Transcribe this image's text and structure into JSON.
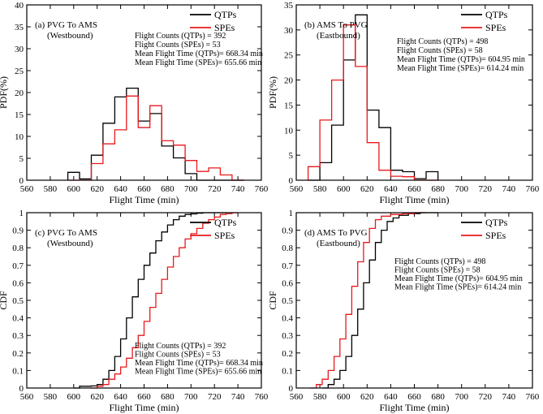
{
  "colors": {
    "qtps": "#000000",
    "spes": "#e8191c",
    "axis": "#000000"
  },
  "chart_data": [
    {
      "id": "a",
      "type": "histogram",
      "title": "(a) PVG To AMS",
      "subtitle": "(Westbound)",
      "xlabel": "Flight Time (min)",
      "ylabel": "PDF(%)",
      "xlim": [
        560,
        760
      ],
      "ylim": [
        0,
        40
      ],
      "xticks": [
        560,
        580,
        600,
        620,
        640,
        660,
        680,
        700,
        720,
        740,
        760
      ],
      "yticks": [
        0,
        5,
        10,
        15,
        20,
        25,
        30,
        35,
        40
      ],
      "bin_edges": [
        595,
        605,
        615,
        625,
        635,
        645,
        655,
        665,
        675,
        685,
        695,
        705,
        715,
        725,
        735,
        745
      ],
      "legend": [
        "QTPs",
        "SPEs"
      ],
      "stats": [
        "Flight Counts (QTPs) = 392",
        "Flight Counts (SPEs) =  53",
        "Mean Flight Time  (QTPs)=  668.34 min",
        "Mean Flight Time  (SPEs)=  655.66 min"
      ],
      "series": [
        {
          "name": "QTPs",
          "values": [
            1.8,
            0.3,
            5.7,
            13.0,
            19.0,
            21.0,
            13.5,
            15.2,
            7.8,
            5.1,
            1.5,
            0.0,
            0.0,
            0.0,
            0.0
          ]
        },
        {
          "name": "SPEs",
          "values": [
            0.0,
            0.0,
            3.8,
            8.3,
            11.5,
            19.2,
            12.0,
            17.0,
            9.0,
            8.0,
            4.5,
            2.0,
            2.8,
            1.2,
            0.0
          ]
        }
      ]
    },
    {
      "id": "b",
      "type": "histogram",
      "title": "(b) AMS To PVG",
      "subtitle": "(Eastbound)",
      "xlabel": "Flight Time (min)",
      "ylabel": "PDF(%)",
      "xlim": [
        560,
        760
      ],
      "ylim": [
        0,
        35
      ],
      "xticks": [
        560,
        580,
        600,
        620,
        640,
        660,
        680,
        700,
        720,
        740,
        760
      ],
      "yticks": [
        0,
        5,
        10,
        15,
        20,
        25,
        30,
        35
      ],
      "bin_edges": [
        570,
        580,
        590,
        600,
        610,
        620,
        630,
        640,
        650,
        660,
        670,
        680
      ],
      "legend": [
        "QTPs",
        "SPEs"
      ],
      "stats": [
        "Flight Counts (QTPs) = 498",
        "Flight Counts (SPEs) =  58",
        "Mean Flight Time  (QTPs)= 604.95 min",
        "Mean Flight Time  (SPEs)= 614.24 min"
      ],
      "series": [
        {
          "name": "QTPs",
          "values": [
            0.0,
            3.5,
            11.0,
            24.0,
            33.0,
            14.0,
            10.5,
            2.0,
            1.7,
            0.3,
            1.7
          ]
        },
        {
          "name": "SPEs",
          "values": [
            2.7,
            12.0,
            20.0,
            31.0,
            22.7,
            7.5,
            2.0,
            0.8,
            0.7,
            0.0,
            0.0
          ]
        }
      ]
    },
    {
      "id": "c",
      "type": "line",
      "title": "(c) PVG To AMS",
      "subtitle": "(Westbound)",
      "xlabel": "Flight Time (min)",
      "ylabel": "CDF",
      "xlim": [
        560,
        760
      ],
      "ylim": [
        0,
        1.0
      ],
      "xticks": [
        560,
        580,
        600,
        620,
        640,
        660,
        680,
        700,
        720,
        740,
        760
      ],
      "yticks": [
        0,
        0.1,
        0.2,
        0.3,
        0.4,
        0.5,
        0.6,
        0.7,
        0.8,
        0.9,
        1.0
      ],
      "legend": [
        "QTPs",
        "SPEs"
      ],
      "stats": [
        "Flight Counts (QTPs) = 392",
        "Flight Counts (SPEs) =  53",
        "Mean Flight Time  (QTPs)=  668.34 min",
        "Mean Flight Time  (SPEs)=  655.66 min"
      ],
      "series": [
        {
          "name": "QTPs",
          "x": [
            600,
            605,
            615,
            620,
            625,
            630,
            635,
            640,
            645,
            650,
            655,
            660,
            665,
            670,
            675,
            680,
            685,
            690,
            695,
            700,
            705,
            710,
            730
          ],
          "values": [
            0,
            0.01,
            0.012,
            0.02,
            0.05,
            0.1,
            0.18,
            0.28,
            0.4,
            0.52,
            0.62,
            0.7,
            0.77,
            0.84,
            0.89,
            0.93,
            0.96,
            0.98,
            0.99,
            0.993,
            0.997,
            1.0,
            1.0
          ]
        },
        {
          "name": "SPEs",
          "x": [
            615,
            620,
            625,
            630,
            635,
            640,
            645,
            650,
            655,
            660,
            665,
            670,
            675,
            680,
            685,
            690,
            695,
            700,
            705,
            710,
            715,
            720,
            725,
            730,
            735,
            740
          ],
          "values": [
            0,
            0.01,
            0.02,
            0.05,
            0.08,
            0.12,
            0.17,
            0.23,
            0.3,
            0.38,
            0.46,
            0.54,
            0.62,
            0.69,
            0.75,
            0.8,
            0.85,
            0.88,
            0.91,
            0.94,
            0.96,
            0.975,
            0.99,
            0.995,
            1.0,
            1.0
          ]
        }
      ]
    },
    {
      "id": "d",
      "type": "line",
      "title": "(d) AMS To PVG",
      "subtitle": "(Eastbound)",
      "xlabel": "Flight Time (min)",
      "ylabel": "CDF",
      "xlim": [
        560,
        760
      ],
      "ylim": [
        0,
        1.0
      ],
      "xticks": [
        560,
        580,
        600,
        620,
        640,
        660,
        680,
        700,
        720,
        740,
        760
      ],
      "yticks": [
        0,
        0.1,
        0.2,
        0.3,
        0.4,
        0.5,
        0.6,
        0.7,
        0.8,
        0.9,
        1.0
      ],
      "legend": [
        "QTPs",
        "SPEs"
      ],
      "stats": [
        "Flight Counts (QTPs) = 498",
        "Flight Counts (SPEs) =  58",
        "Mean Flight Time  (QTPs)= 604.95 min",
        "Mean Flight Time  (SPEs)= 614.24 min"
      ],
      "series": [
        {
          "name": "QTPs",
          "x": [
            582,
            587,
            592,
            597,
            602,
            607,
            612,
            617,
            622,
            627,
            632,
            637,
            642,
            647,
            655,
            665,
            680
          ],
          "values": [
            0,
            0.02,
            0.05,
            0.1,
            0.18,
            0.3,
            0.45,
            0.6,
            0.73,
            0.83,
            0.9,
            0.95,
            0.97,
            0.985,
            0.995,
            1.0,
            1.0
          ]
        },
        {
          "name": "SPEs",
          "x": [
            572,
            577,
            582,
            587,
            592,
            597,
            602,
            607,
            612,
            617,
            622,
            627,
            632,
            640,
            650,
            660,
            670
          ],
          "values": [
            0,
            0.02,
            0.05,
            0.1,
            0.18,
            0.28,
            0.42,
            0.58,
            0.72,
            0.83,
            0.91,
            0.96,
            0.98,
            0.99,
            0.995,
            1.0,
            1.0
          ]
        }
      ]
    }
  ]
}
